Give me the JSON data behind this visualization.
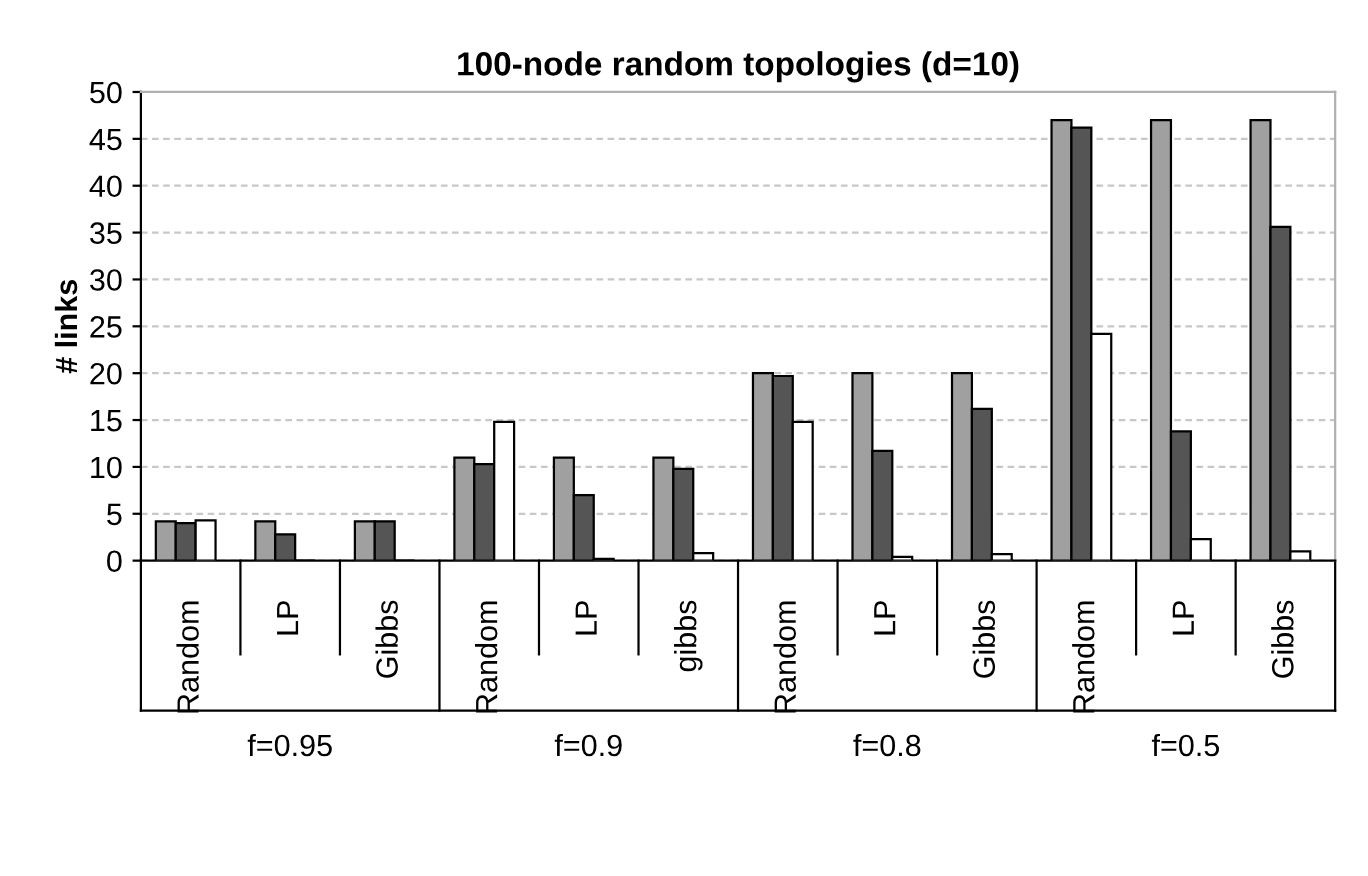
{
  "chart_data": {
    "type": "bar",
    "title": "100-node random topologies (d=10)",
    "ylabel": "# links",
    "categories": [
      "Random",
      "LP",
      "Gibbs",
      "Random",
      "LP",
      "gibbs",
      "Random",
      "LP",
      "Gibbs",
      "Random",
      "LP",
      "Gibbs"
    ],
    "series": [
      {
        "color": "#a0a0a0",
        "values": [
          4.2,
          4.2,
          4.2,
          11,
          11,
          11,
          20,
          20,
          20,
          47,
          47,
          47
        ]
      },
      {
        "color": "#555555",
        "values": [
          4.0,
          2.8,
          4.2,
          10.3,
          7.0,
          9.8,
          19.7,
          11.7,
          16.2,
          46.2,
          13.8,
          35.6
        ]
      },
      {
        "color": "#ffffff",
        "values": [
          4.3,
          0,
          0,
          14.8,
          0.2,
          0.8,
          14.8,
          0.4,
          0.7,
          24.2,
          2.3,
          1.0
        ]
      }
    ],
    "annotations": [
      "f=0.95",
      "f=0.9",
      "f=0.8",
      "f=0.5"
    ],
    "ylim": [
      0,
      50
    ],
    "yticks": [
      0,
      5,
      10,
      15,
      20,
      25,
      30,
      35,
      40,
      45,
      50
    ],
    "grid": "y"
  }
}
